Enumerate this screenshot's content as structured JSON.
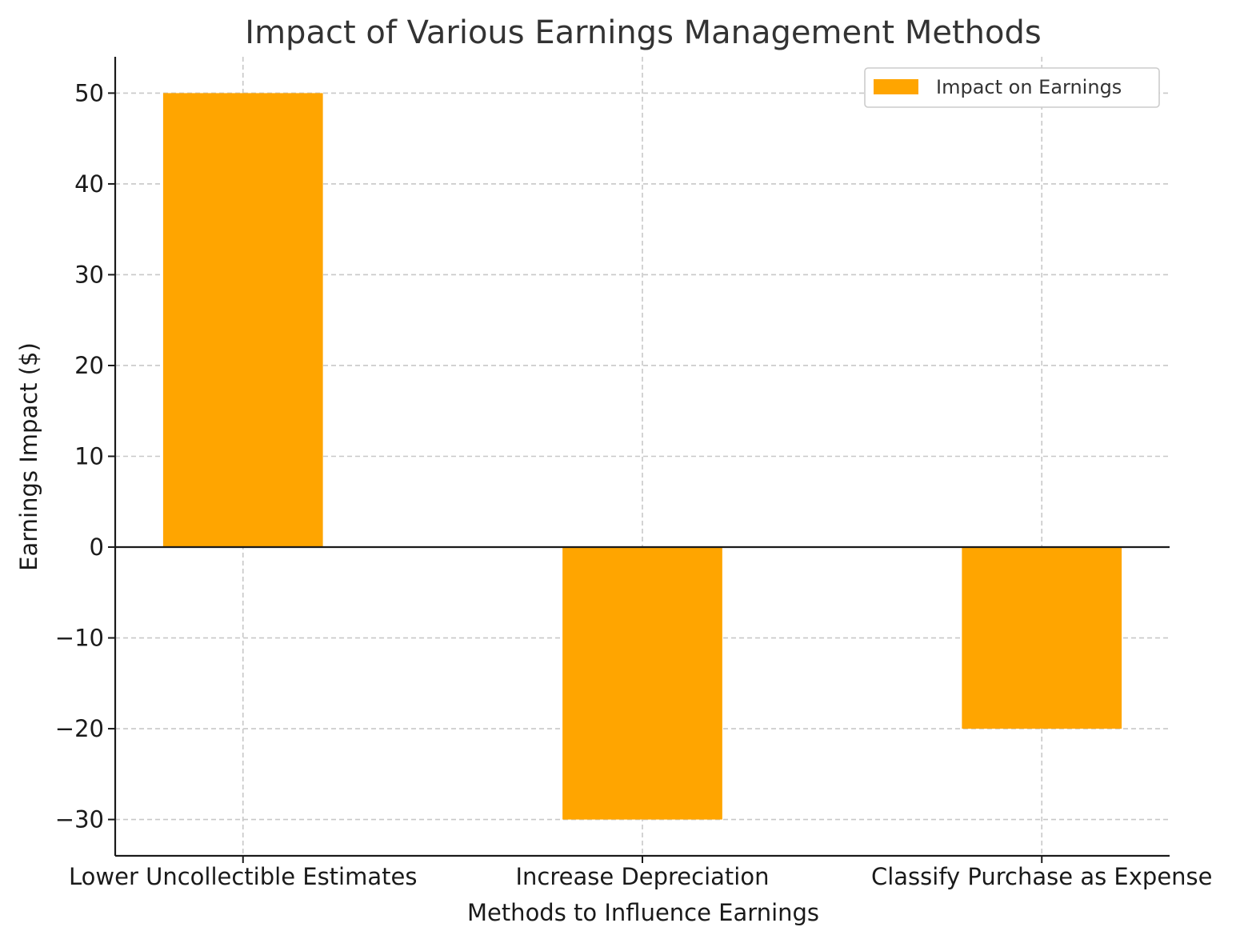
{
  "chart_data": {
    "type": "bar",
    "title": "Impact of Various Earnings Management Methods",
    "xlabel": "Methods to Influence Earnings",
    "ylabel": "Earnings Impact ($)",
    "categories": [
      "Lower Uncollectible Estimates",
      "Increase Depreciation",
      "Classify Purchase as Expense"
    ],
    "series": [
      {
        "name": "Impact on Earnings",
        "values": [
          50,
          -30,
          -20
        ],
        "color": "#ffa500"
      }
    ],
    "ylim": [
      -34,
      54
    ],
    "yticks": [
      50,
      40,
      30,
      20,
      10,
      0,
      -10,
      -20,
      -30
    ],
    "ytick_labels": [
      "50",
      "40",
      "30",
      "20",
      "10",
      "0",
      "−10",
      "−20",
      "−30"
    ],
    "grid": true,
    "legend_position": "top-right",
    "zero_line": true
  }
}
